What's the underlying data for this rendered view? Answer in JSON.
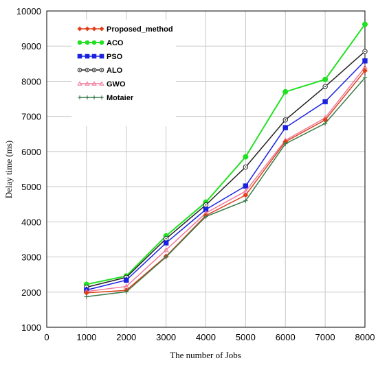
{
  "chart_data": {
    "type": "line",
    "xlabel": "The number of Jobs",
    "ylabel": "Delay time (ms)",
    "xlim": [
      0,
      8000
    ],
    "ylim": [
      1000,
      10000
    ],
    "x_ticks": [
      0,
      1000,
      2000,
      3000,
      4000,
      5000,
      6000,
      7000,
      8000
    ],
    "y_ticks": [
      1000,
      2000,
      3000,
      4000,
      5000,
      6000,
      7000,
      8000,
      9000,
      10000
    ],
    "x_tick_labels": [
      "0",
      "1000",
      "2000",
      "3000",
      "4000",
      "5000",
      "6000",
      "7000",
      "8000"
    ],
    "y_tick_labels": [
      "1000",
      "2000",
      "3000",
      "4000",
      "5000",
      "6000",
      "7000",
      "8000",
      "9000",
      "10000"
    ],
    "grid": true,
    "legend_position": "top-left",
    "x": [
      1000,
      2000,
      3000,
      4000,
      5000,
      6000,
      7000,
      8000
    ],
    "series": [
      {
        "name": "Proposed_method",
        "color": "#e0401a",
        "marker": "diamond",
        "values": [
          1980,
          2050,
          3020,
          4180,
          4760,
          6280,
          6900,
          8300
        ]
      },
      {
        "name": "ACO",
        "color": "#22e022",
        "marker": "circle",
        "values": [
          2220,
          2460,
          3600,
          4560,
          5850,
          7700,
          8050,
          9620
        ]
      },
      {
        "name": "PSO",
        "color": "#1a22e0",
        "marker": "square",
        "values": [
          2060,
          2340,
          3400,
          4350,
          5020,
          6680,
          7420,
          8580
        ]
      },
      {
        "name": "ALO",
        "color": "#222222",
        "marker": "circle-open",
        "values": [
          2140,
          2420,
          3520,
          4480,
          5560,
          6900,
          7850,
          8850
        ]
      },
      {
        "name": "GWO",
        "color": "#f07a9a",
        "marker": "triangle",
        "values": [
          2020,
          2160,
          3200,
          4250,
          4870,
          6320,
          6960,
          8400
        ]
      },
      {
        "name": "Motaier",
        "color": "#3a7a4a",
        "marker": "plus",
        "values": [
          1870,
          2010,
          3000,
          4150,
          4600,
          6220,
          6800,
          8100
        ]
      }
    ]
  }
}
